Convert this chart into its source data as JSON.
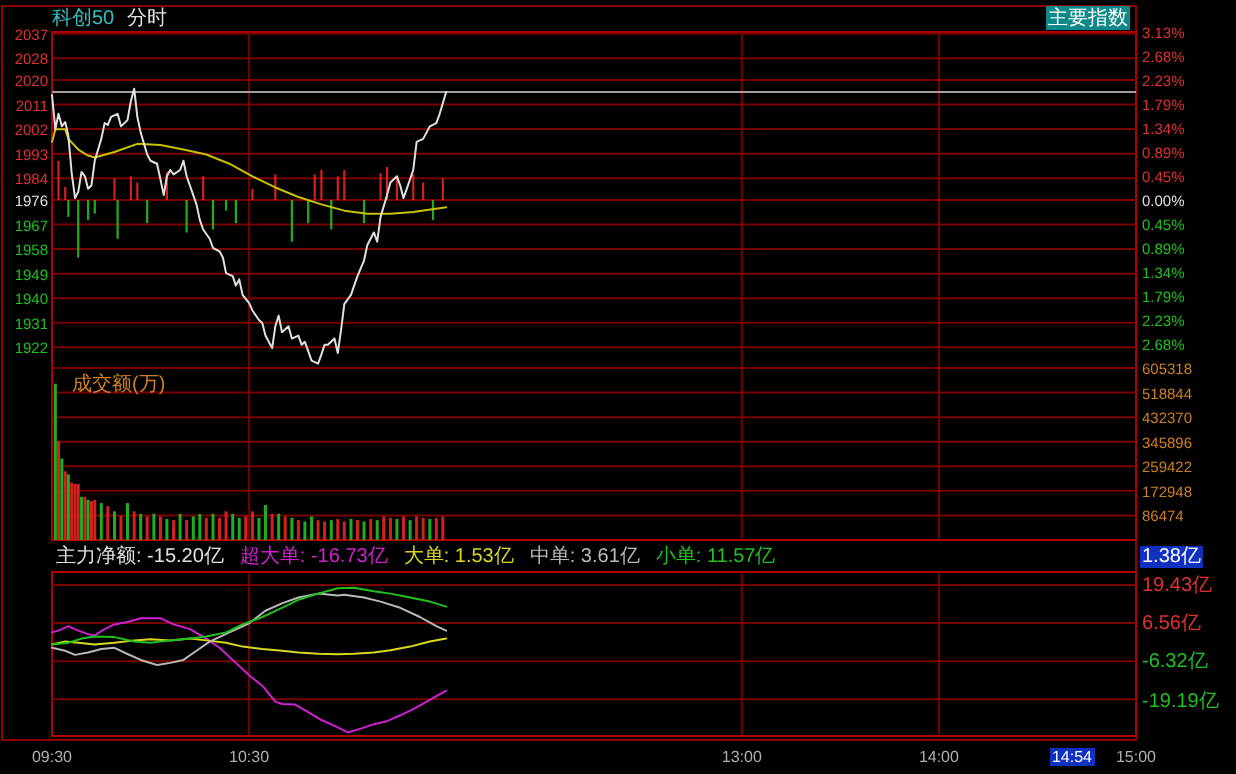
{
  "chart_data": [
    {
      "type": "line",
      "title": "科创50",
      "subtitle": "分时",
      "xlim": [
        9.5,
        15
      ],
      "xticks": [
        {
          "value": 9.5,
          "label": null
        },
        {
          "value": 10.5,
          "label": null
        },
        {
          "value": 13,
          "label": null
        },
        {
          "value": 14,
          "label": null
        },
        {
          "value": 15,
          "label": null
        }
      ],
      "tick_labels": "y",
      "grid": true,
      "ylim": [
        1914.4,
        2037.6
      ],
      "yticks": [
        2037,
        2028,
        2020,
        2011,
        2002,
        1993,
        1984,
        1976,
        1967,
        1958,
        1949,
        1940,
        1931,
        1922
      ],
      "y2lim": [
        -3.13,
        3.13
      ],
      "y2ticks": [
        {
          "value": 3.13,
          "label": "3.13%"
        },
        {
          "value": 2.68,
          "label": "2.68%"
        },
        {
          "value": 2.23,
          "label": "2.23%"
        },
        {
          "value": 1.79,
          "label": "1.79%"
        },
        {
          "value": 1.34,
          "label": "1.34%"
        },
        {
          "value": 0.89,
          "label": "0.89%"
        },
        {
          "value": 0.45,
          "label": "0.45%"
        },
        {
          "value": 0,
          "label": "0.00%"
        },
        {
          "value": -0.45,
          "label": "0.45%"
        },
        {
          "value": -0.89,
          "label": "0.89%"
        },
        {
          "value": -1.34,
          "label": "1.34%"
        },
        {
          "value": -1.79,
          "label": "1.79%"
        },
        {
          "value": -2.23,
          "label": "2.23%"
        },
        {
          "value": -2.68,
          "label": "2.68%"
        }
      ],
      "ref_lines": [
        {
          "axis": "y",
          "value": 2015.6,
          "color": "#a0a0a0"
        }
      ],
      "annotations": [
        "主要指数"
      ],
      "series": [
        {
          "type": "bar",
          "x": [
            9.533,
            9.567,
            9.583,
            9.633,
            9.683,
            9.717,
            9.817,
            9.833,
            9.9,
            9.933,
            9.983,
            10.083,
            10.183,
            10.267,
            10.317,
            10.383,
            10.433,
            10.517,
            10.633,
            10.717,
            10.8,
            10.833,
            10.867,
            10.917,
            10.95,
            10.983,
            11.083,
            11.167,
            11.2,
            11.25,
            11.333,
            11.383,
            11.433,
            11.483
          ],
          "values": [
            14.4,
            4.8,
            -6.2,
            -21.1,
            -7.3,
            -5.0,
            8.0,
            -14.2,
            8.7,
            6.4,
            -8.5,
            10.3,
            -11.9,
            8.7,
            -10.8,
            -3.9,
            -8.5,
            4.1,
            9.4,
            -15.3,
            -8.5,
            9.4,
            11.0,
            -10.8,
            8.7,
            11.0,
            -8.5,
            9.8,
            12.1,
            8.7,
            9.4,
            6.4,
            -7.3,
            8.0
          ],
          "base": [
            1976,
            1976,
            1976,
            1976,
            1976,
            1976,
            1976,
            1976,
            1976,
            1976,
            1976,
            1976,
            1976,
            1976,
            1976,
            1976,
            1976,
            1976,
            1976,
            1976,
            1976,
            1976,
            1976,
            1976,
            1976,
            1976,
            1976,
            1976,
            1976,
            1976,
            1976,
            1976,
            1976,
            1976
          ],
          "colors": [
            "#d42020",
            "#d42020",
            "#1fae1f",
            "#1fae1f",
            "#1fae1f",
            "#1fae1f",
            "#d42020",
            "#1fae1f",
            "#d42020",
            "#d42020",
            "#1fae1f",
            "#d42020",
            "#1fae1f",
            "#d42020",
            "#1fae1f",
            "#1fae1f",
            "#1fae1f",
            "#d42020",
            "#d42020",
            "#1fae1f",
            "#1fae1f",
            "#d42020",
            "#d42020",
            "#1fae1f",
            "#d42020",
            "#d42020",
            "#1fae1f",
            "#d42020",
            "#d42020",
            "#d42020",
            "#d42020",
            "#d42020",
            "#1fae1f",
            "#d42020"
          ]
        },
        {
          "color": "#c8c000",
          "x": [
            9.5,
            9.517,
            9.567,
            9.583,
            9.633,
            9.683,
            9.717,
            9.817,
            9.933,
            10.05,
            10.167,
            10.283,
            10.4,
            10.517,
            10.633,
            10.75,
            10.867,
            10.983,
            11.1,
            11.217,
            11.333,
            11.5
          ],
          "values": [
            1997.3,
            2001.9,
            2001.9,
            1998.4,
            1994.5,
            1992.3,
            1991.6,
            1993.6,
            1996.6,
            1996.2,
            1994.5,
            1992.7,
            1989.3,
            1984.7,
            1980.6,
            1977.1,
            1974.4,
            1972.1,
            1971.0,
            1971.0,
            1971.6,
            1973.3
          ]
        },
        {
          "color": "#e0e0e0",
          "x": [
            9.5,
            9.517,
            9.533,
            9.55,
            9.567,
            9.583,
            9.6,
            9.617,
            9.633,
            9.65,
            9.667,
            9.683,
            9.7,
            9.717,
            9.75,
            9.767,
            9.783,
            9.8,
            9.833,
            9.85,
            9.883,
            9.9,
            9.917,
            9.933,
            9.95,
            9.983,
            10,
            10.033,
            10.05,
            10.067,
            10.083,
            10.1,
            10.117,
            10.15,
            10.167,
            10.183,
            10.2,
            10.233,
            10.25,
            10.267,
            10.3,
            10.317,
            10.35,
            10.367,
            10.383,
            10.417,
            10.433,
            10.45,
            10.467,
            10.5,
            10.517,
            10.55,
            10.567,
            10.583,
            10.617,
            10.633,
            10.65,
            10.667,
            10.7,
            10.717,
            10.75,
            10.767,
            10.783,
            10.8,
            10.817,
            10.85,
            10.867,
            10.883,
            10.9,
            10.933,
            10.95,
            10.967,
            10.983,
            11.017,
            11.033,
            11.05,
            11.083,
            11.1,
            11.133,
            11.15,
            11.167,
            11.2,
            11.217,
            11.25,
            11.267,
            11.283,
            11.3,
            11.333,
            11.35,
            11.383,
            11.4,
            11.417,
            11.45,
            11.467,
            11.5
          ],
          "values": [
            2014.5,
            2001.9,
            2007.6,
            2003.0,
            2004.6,
            1999.6,
            1985.8,
            1976.7,
            1979.0,
            1986.3,
            1984.7,
            1980.1,
            1981.3,
            1990.4,
            1998.4,
            2004.2,
            2003.5,
            2006.5,
            2007.6,
            2003.0,
            2005.3,
            2012.2,
            2016.8,
            2006.5,
            2000.7,
            1992.7,
            1990.4,
            1989.3,
            1983.6,
            1977.8,
            1984.7,
            1987.0,
            1985.4,
            1987.0,
            1990.4,
            1984.7,
            1981.3,
            1974.4,
            1968.7,
            1965.2,
            1961.8,
            1958.4,
            1957.2,
            1954.9,
            1949.2,
            1948.1,
            1944.6,
            1946.9,
            1941.2,
            1938.2,
            1935.5,
            1932.0,
            1930.9,
            1926.3,
            1921.7,
            1929.7,
            1933.6,
            1927.5,
            1929.7,
            1925.2,
            1926.3,
            1922.9,
            1924.0,
            1920.6,
            1917.1,
            1916.0,
            1919.4,
            1922.9,
            1922.9,
            1925.2,
            1919.9,
            1928.6,
            1937.8,
            1941.2,
            1944.6,
            1948.1,
            1953.8,
            1959.5,
            1964.1,
            1960.7,
            1969.8,
            1977.8,
            1982.4,
            1984.7,
            1981.3,
            1976.7,
            1980.1,
            1987.0,
            1997.3,
            1998.4,
            2000.7,
            2003.0,
            2004.2,
            2007.6,
            2015.6
          ]
        }
      ]
    },
    {
      "type": "bar",
      "title": "成交额(万)",
      "xlim": [
        9.5,
        15
      ],
      "xticks": [
        {
          "value": 9.5,
          "label": null
        },
        {
          "value": 10.5,
          "label": null
        },
        {
          "value": 13,
          "label": null
        },
        {
          "value": 14,
          "label": null
        },
        {
          "value": 15,
          "label": null
        }
      ],
      "tick_labels": "y",
      "grid": true,
      "ylim": [
        0,
        605318
      ],
      "yticks": [
        86474,
        172948,
        259422,
        345896,
        432370,
        518844,
        605318
      ],
      "x": [
        9.517,
        9.533,
        9.55,
        9.567,
        9.583,
        9.6,
        9.617,
        9.633,
        9.65,
        9.667,
        9.683,
        9.7,
        9.717,
        9.75,
        9.783,
        9.817,
        9.85,
        9.883,
        9.917,
        9.95,
        9.983,
        10.017,
        10.05,
        10.083,
        10.117,
        10.15,
        10.183,
        10.217,
        10.25,
        10.283,
        10.317,
        10.35,
        10.383,
        10.417,
        10.45,
        10.483,
        10.517,
        10.55,
        10.583,
        10.617,
        10.65,
        10.683,
        10.717,
        10.75,
        10.783,
        10.817,
        10.85,
        10.883,
        10.917,
        10.95,
        10.983,
        11.017,
        11.05,
        11.083,
        11.117,
        11.15,
        11.183,
        11.217,
        11.25,
        11.283,
        11.317,
        11.35,
        11.383,
        11.417,
        11.45,
        11.483
      ],
      "values": [
        550000,
        348000,
        287000,
        242000,
        231000,
        202000,
        197000,
        197000,
        152000,
        152000,
        141000,
        137000,
        141000,
        130000,
        119000,
        101000,
        85000,
        130000,
        101000,
        92000,
        83000,
        92000,
        83000,
        74000,
        70000,
        92000,
        70000,
        83000,
        92000,
        78000,
        92000,
        78000,
        101000,
        92000,
        78000,
        83000,
        101000,
        78000,
        123000,
        92000,
        92000,
        83000,
        78000,
        70000,
        65000,
        83000,
        70000,
        65000,
        70000,
        74000,
        65000,
        74000,
        70000,
        65000,
        74000,
        70000,
        83000,
        78000,
        74000,
        83000,
        70000,
        83000,
        78000,
        74000,
        78000,
        83000
      ],
      "colors": [
        "#1fae1f",
        "#d42020",
        "#1fae1f",
        "#d42020",
        "#1fae1f",
        "#d42020",
        "#d42020",
        "#d42020",
        "#1fae1f",
        "#d42020",
        "#1fae1f",
        "#d42020",
        "#d42020",
        "#1fae1f",
        "#d42020",
        "#1fae1f",
        "#d42020",
        "#1fae1f",
        "#d42020",
        "#1fae1f",
        "#d42020",
        "#1fae1f",
        "#d42020",
        "#1fae1f",
        "#d42020",
        "#1fae1f",
        "#d42020",
        "#1fae1f",
        "#1fae1f",
        "#d42020",
        "#1fae1f",
        "#d42020",
        "#d42020",
        "#1fae1f",
        "#1fae1f",
        "#d42020",
        "#d42020",
        "#1fae1f",
        "#1fae1f",
        "#d42020",
        "#1fae1f",
        "#d42020",
        "#1fae1f",
        "#d42020",
        "#1fae1f",
        "#1fae1f",
        "#d42020",
        "#d42020",
        "#1fae1f",
        "#d42020",
        "#d42020",
        "#1fae1f",
        "#d42020",
        "#1fae1f",
        "#d42020",
        "#1fae1f",
        "#d42020",
        "#d42020",
        "#1fae1f",
        "#d42020",
        "#1fae1f",
        "#d42020",
        "#d42020",
        "#1fae1f",
        "#d42020",
        "#d42020"
      ]
    },
    {
      "type": "line",
      "xlim": [
        9.5,
        15
      ],
      "xticks": [
        {
          "value": 9.5,
          "label": "09:30"
        },
        {
          "value": 10.5,
          "label": "10:30"
        },
        {
          "value": 13,
          "label": "13:00"
        },
        {
          "value": 14,
          "label": "14:00"
        },
        {
          "value": 15,
          "label": "15:00"
        }
      ],
      "grid": true,
      "ylim": [
        -31.6,
        23.8
      ],
      "yticks": [
        {
          "value": 19.43,
          "label": "19.43亿"
        },
        {
          "value": 6.56,
          "label": "6.56亿"
        },
        {
          "value": -6.32,
          "label": "-6.32亿"
        },
        {
          "value": -19.19,
          "label": "-19.19亿"
        }
      ],
      "annotations": [
        "主力净额: -15.20亿",
        "1.38亿",
        "14:54"
      ],
      "series": [
        {
          "name": "超大单: -16.73亿",
          "color": "#d020d0",
          "x": [
            9.5,
            9.533,
            9.583,
            9.633,
            9.683,
            9.717,
            9.767,
            9.817,
            9.883,
            9.95,
            10.05,
            10.117,
            10.2,
            10.283,
            10.35,
            10.433,
            10.5,
            10.567,
            10.633,
            10.667,
            10.733,
            10.8,
            10.867,
            10.95,
            11,
            11.067,
            11.133,
            11.2,
            11.267,
            11.333,
            11.417,
            11.5
          ],
          "values": [
            3.4,
            4.0,
            5.5,
            4.0,
            2.8,
            2.4,
            4.5,
            6.1,
            6.9,
            8.2,
            8.2,
            6.1,
            4.5,
            1.3,
            -1.8,
            -6.9,
            -11.1,
            -14.6,
            -20.0,
            -20.8,
            -21.0,
            -23.5,
            -26.2,
            -28.7,
            -30.4,
            -29.1,
            -27.6,
            -26.6,
            -24.6,
            -22.5,
            -19.4,
            -16.3
          ]
        },
        {
          "name": "大单: 1.53亿",
          "color": "#d8d820",
          "x": [
            9.5,
            9.567,
            9.633,
            9.717,
            9.817,
            9.917,
            10,
            10.1,
            10.2,
            10.283,
            10.383,
            10.467,
            10.567,
            10.667,
            10.75,
            10.85,
            10.95,
            11.033,
            11.133,
            11.217,
            11.317,
            11.417,
            11.5
          ],
          "values": [
            -0.7,
            0.3,
            -0.1,
            -0.7,
            -0.1,
            0.7,
            1.1,
            0.7,
            1.3,
            0.7,
            -0.1,
            -1.4,
            -2.2,
            -2.8,
            -3.4,
            -3.8,
            -4.0,
            -3.8,
            -3.4,
            -2.6,
            -1.4,
            0.3,
            1.3
          ]
        },
        {
          "name": "中单: 3.61亿",
          "color": "#b8b8b8",
          "x": [
            9.5,
            9.567,
            9.617,
            9.683,
            9.75,
            9.817,
            9.883,
            9.95,
            10.033,
            10.1,
            10.167,
            10.233,
            10.3,
            10.4,
            10.5,
            10.583,
            10.667,
            10.75,
            10.85,
            10.95,
            10.983,
            11.083,
            11.167,
            11.267,
            11.367,
            11.45,
            11.5
          ],
          "values": [
            -1.8,
            -2.8,
            -4.2,
            -3.4,
            -2.2,
            -1.8,
            -3.9,
            -5.9,
            -7.6,
            -6.9,
            -5.9,
            -2.8,
            0.3,
            3.4,
            6.5,
            10.7,
            13.2,
            15.2,
            16.5,
            15.9,
            16.1,
            15.2,
            13.8,
            11.7,
            8.6,
            5.5,
            4.0
          ]
        },
        {
          "name": "小单: 11.57亿",
          "color": "#20c020",
          "x": [
            9.5,
            9.583,
            9.65,
            9.717,
            9.817,
            9.917,
            10,
            10.1,
            10.2,
            10.283,
            10.383,
            10.467,
            10.567,
            10.667,
            10.75,
            10.85,
            10.95,
            11.033,
            11.133,
            11.217,
            11.317,
            11.417,
            11.5
          ],
          "values": [
            -0.7,
            -0.1,
            1.3,
            2.0,
            1.8,
            0.3,
            -0.1,
            0.7,
            1.3,
            2.0,
            3.4,
            6.1,
            8.6,
            11.7,
            14.4,
            16.5,
            18.3,
            18.5,
            17.3,
            16.5,
            15.2,
            13.8,
            12.1
          ]
        }
      ]
    }
  ]
}
